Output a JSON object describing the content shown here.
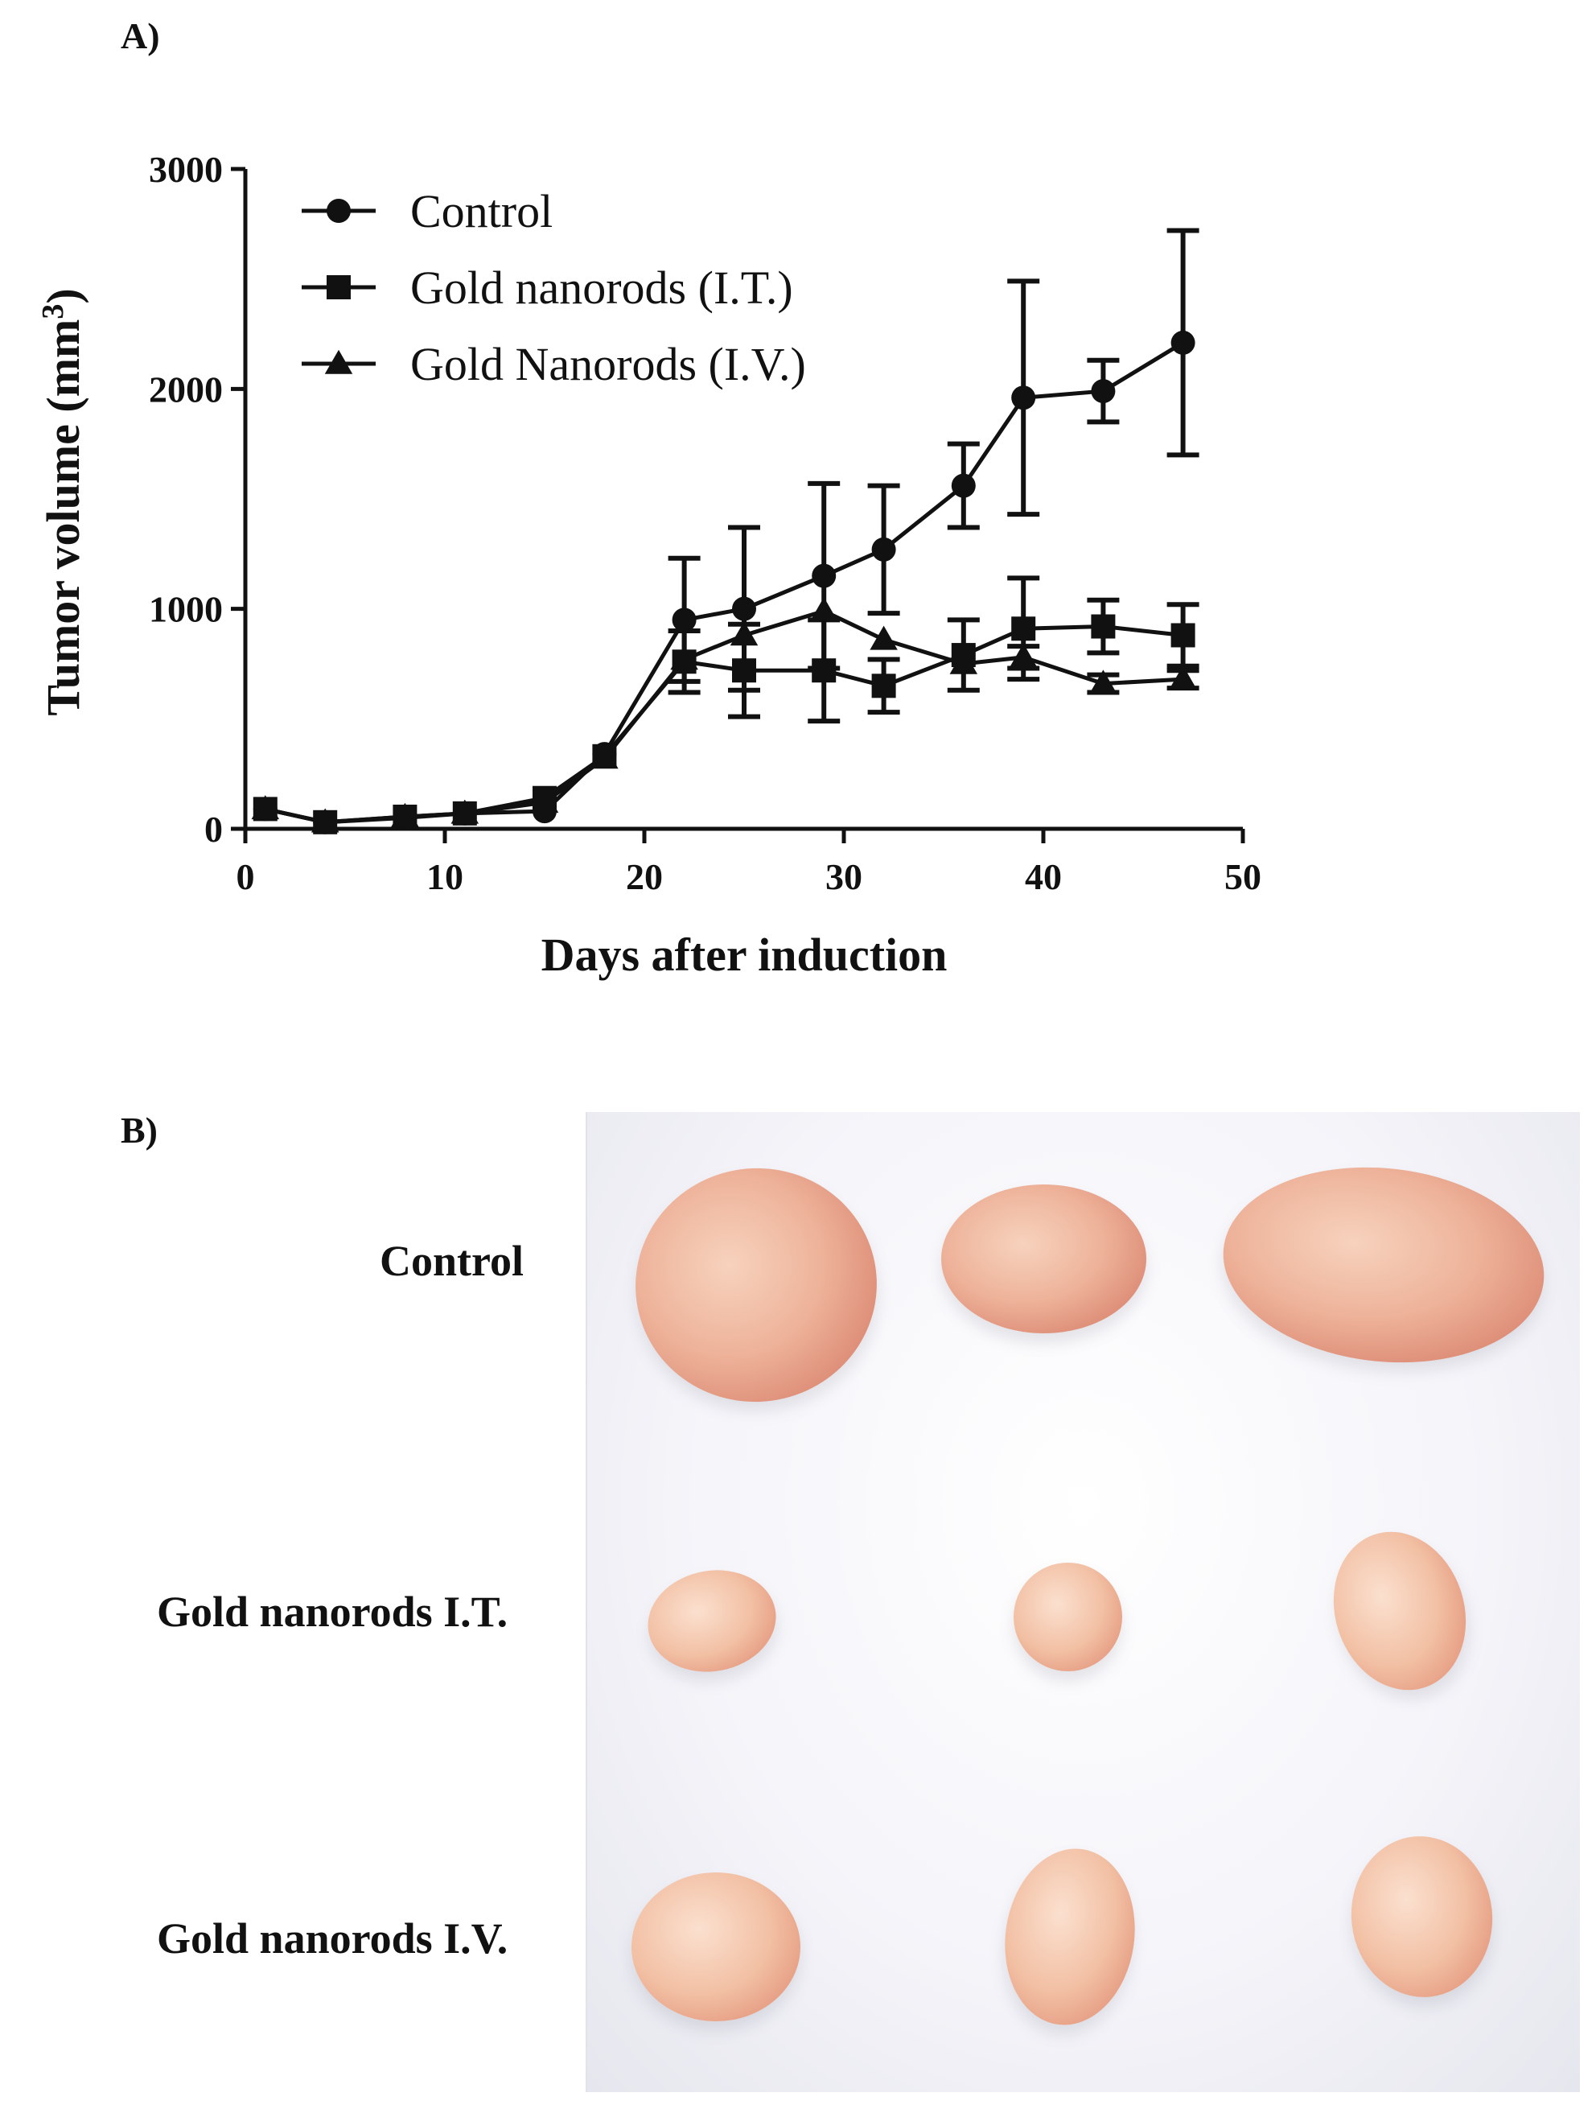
{
  "panel_a_label": "A)",
  "panel_b_label": "B)",
  "chart_data": {
    "type": "line",
    "xlabel": "Days after induction",
    "ylabel": "Tumor volume (mm",
    "ylabel_superscript": "3",
    "ylabel_close": ")",
    "xlim": [
      0,
      50
    ],
    "ylim": [
      0,
      3000
    ],
    "xticks": [
      0,
      10,
      20,
      30,
      40,
      50
    ],
    "yticks": [
      0,
      1000,
      2000,
      3000
    ],
    "grid": false,
    "legend_position": "top-left",
    "series": [
      {
        "name": "Control",
        "marker": "circle",
        "x": [
          1,
          4,
          8,
          11,
          15,
          18,
          22,
          25,
          29,
          32,
          36,
          39,
          43,
          47
        ],
        "y": [
          90,
          30,
          50,
          70,
          80,
          340,
          950,
          1000,
          1150,
          1270,
          1560,
          1960,
          1990,
          2210
        ],
        "error": [
          0,
          0,
          0,
          0,
          0,
          0,
          280,
          370,
          420,
          290,
          190,
          530,
          140,
          510
        ]
      },
      {
        "name": "Gold nanorods (I.T.)",
        "marker": "square",
        "x": [
          1,
          4,
          8,
          11,
          15,
          18,
          22,
          25,
          29,
          32,
          36,
          39,
          43,
          47
        ],
        "y": [
          90,
          30,
          55,
          70,
          140,
          330,
          760,
          720,
          720,
          650,
          790,
          910,
          920,
          880
        ],
        "error": [
          0,
          0,
          0,
          0,
          0,
          0,
          140,
          210,
          230,
          120,
          160,
          230,
          120,
          140
        ]
      },
      {
        "name": "Gold Nanorods (I.V.)",
        "marker": "triangle",
        "x": [
          1,
          4,
          8,
          11,
          15,
          18,
          22,
          25,
          29,
          32,
          36,
          39,
          43,
          47
        ],
        "y": [
          90,
          30,
          55,
          70,
          120,
          320,
          770,
          880,
          990,
          860,
          750,
          780,
          660,
          680
        ],
        "error": [
          0,
          0,
          0,
          0,
          0,
          0,
          0,
          0,
          0,
          0,
          0,
          50,
          40,
          40
        ]
      }
    ]
  },
  "photo": {
    "row_labels": [
      "Control",
      "Gold nanorods I.T.",
      "Gold nanorods I.V."
    ]
  }
}
